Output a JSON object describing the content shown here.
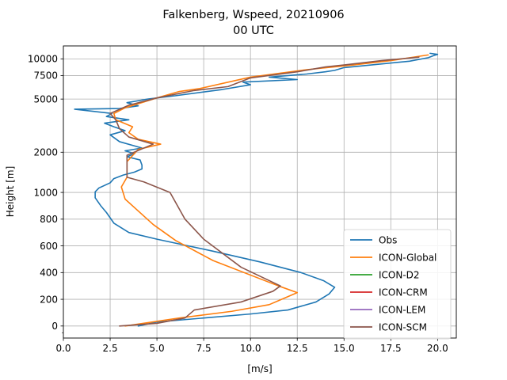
{
  "chart_data": {
    "type": "line",
    "title": "Falkenberg, Wspeed, 20210906",
    "subtitle": "00 UTC",
    "xlabel": "[m/s]",
    "ylabel": "Height [m]",
    "xlim": [
      0,
      21
    ],
    "y_scale": "symlog",
    "x_ticks": [
      "0.0",
      "2.5",
      "5.0",
      "7.5",
      "10.0",
      "12.5",
      "15.0",
      "17.5",
      "20.0"
    ],
    "y_ticks": [
      "0",
      "200",
      "400",
      "600",
      "800",
      "1000",
      "2000",
      "5000",
      "7500",
      "10000"
    ],
    "grid": true,
    "legend_position": "lower-right",
    "series": [
      {
        "name": "Obs",
        "color": "#1f77b4",
        "points": [
          [
            4.0,
            0
          ],
          [
            5.0,
            30
          ],
          [
            7.5,
            60
          ],
          [
            10.0,
            90
          ],
          [
            12.0,
            120
          ],
          [
            13.5,
            180
          ],
          [
            14.2,
            240
          ],
          [
            14.5,
            290
          ],
          [
            13.9,
            340
          ],
          [
            12.7,
            400
          ],
          [
            10.5,
            480
          ],
          [
            8.0,
            560
          ],
          [
            5.0,
            650
          ],
          [
            3.5,
            700
          ],
          [
            2.7,
            770
          ],
          [
            2.3,
            850
          ],
          [
            2.0,
            900
          ],
          [
            1.7,
            960
          ],
          [
            1.7,
            1010
          ],
          [
            1.9,
            1080
          ],
          [
            2.5,
            1180
          ],
          [
            2.7,
            1270
          ],
          [
            3.2,
            1350
          ],
          [
            3.8,
            1420
          ],
          [
            4.2,
            1500
          ],
          [
            4.2,
            1600
          ],
          [
            4.1,
            1750
          ],
          [
            3.4,
            1850
          ],
          [
            3.8,
            1950
          ],
          [
            3.3,
            2050
          ],
          [
            4.2,
            2150
          ],
          [
            3.0,
            2400
          ],
          [
            2.5,
            2700
          ],
          [
            3.3,
            2900
          ],
          [
            2.7,
            3100
          ],
          [
            2.2,
            3300
          ],
          [
            3.5,
            3500
          ],
          [
            2.3,
            3700
          ],
          [
            2.6,
            3900
          ],
          [
            0.6,
            4200
          ],
          [
            3.0,
            4250
          ],
          [
            4.0,
            4450
          ],
          [
            3.4,
            4700
          ],
          [
            4.5,
            5000
          ],
          [
            6.0,
            5300
          ],
          [
            8.5,
            5900
          ],
          [
            10.0,
            6400
          ],
          [
            9.6,
            6700
          ],
          [
            12.5,
            7000
          ],
          [
            11.0,
            7300
          ],
          [
            13.0,
            7700
          ],
          [
            14.0,
            8000
          ],
          [
            14.5,
            8200
          ],
          [
            15.0,
            8600
          ],
          [
            18.5,
            9600
          ],
          [
            19.5,
            10200
          ],
          [
            19.8,
            10600
          ],
          [
            20.0,
            10800
          ],
          [
            19.6,
            11000
          ]
        ]
      },
      {
        "name": "ICON-Global",
        "color": "#ff7f0e",
        "points": [
          [
            3.3,
            0
          ],
          [
            6.2,
            60
          ],
          [
            9.0,
            110
          ],
          [
            11.0,
            160
          ],
          [
            12.5,
            250
          ],
          [
            11.5,
            300
          ],
          [
            8.0,
            490
          ],
          [
            6.0,
            640
          ],
          [
            4.8,
            760
          ],
          [
            3.3,
            950
          ],
          [
            3.1,
            1100
          ],
          [
            3.4,
            1300
          ],
          [
            3.4,
            1700
          ],
          [
            4.0,
            2100
          ],
          [
            5.2,
            2300
          ],
          [
            4.0,
            2500
          ],
          [
            3.5,
            2800
          ],
          [
            3.7,
            3100
          ],
          [
            2.8,
            3500
          ],
          [
            2.7,
            3900
          ],
          [
            3.3,
            4300
          ],
          [
            5.0,
            5100
          ],
          [
            6.2,
            5700
          ],
          [
            7.3,
            6000
          ],
          [
            10.0,
            7300
          ],
          [
            13.0,
            8300
          ],
          [
            15.5,
            9000
          ],
          [
            17.5,
            9700
          ],
          [
            19.5,
            10700
          ]
        ]
      },
      {
        "name": "ICON-D2",
        "color": "#2ca02c",
        "points": []
      },
      {
        "name": "ICON-CRM",
        "color": "#d62728",
        "points": []
      },
      {
        "name": "ICON-LEM",
        "color": "#9467bd",
        "points": []
      },
      {
        "name": "ICON-SCM",
        "color": "#8c564b",
        "points": [
          [
            3.0,
            0
          ],
          [
            5.0,
            20
          ],
          [
            6.5,
            60
          ],
          [
            7.0,
            120
          ],
          [
            9.5,
            180
          ],
          [
            11.2,
            260
          ],
          [
            11.6,
            300
          ],
          [
            9.5,
            440
          ],
          [
            7.5,
            650
          ],
          [
            6.5,
            800
          ],
          [
            5.7,
            1000
          ],
          [
            4.3,
            1200
          ],
          [
            3.4,
            1300
          ],
          [
            3.4,
            1900
          ],
          [
            4.8,
            2300
          ],
          [
            3.5,
            2600
          ],
          [
            3.0,
            3000
          ],
          [
            2.8,
            3500
          ],
          [
            2.5,
            3900
          ],
          [
            3.5,
            4500
          ],
          [
            5.0,
            5100
          ],
          [
            7.0,
            5800
          ],
          [
            8.8,
            6200
          ],
          [
            10.0,
            7200
          ],
          [
            12.5,
            8000
          ],
          [
            14.0,
            8700
          ],
          [
            15.0,
            9000
          ],
          [
            17.0,
            9700
          ],
          [
            19.0,
            10300
          ]
        ]
      }
    ]
  }
}
